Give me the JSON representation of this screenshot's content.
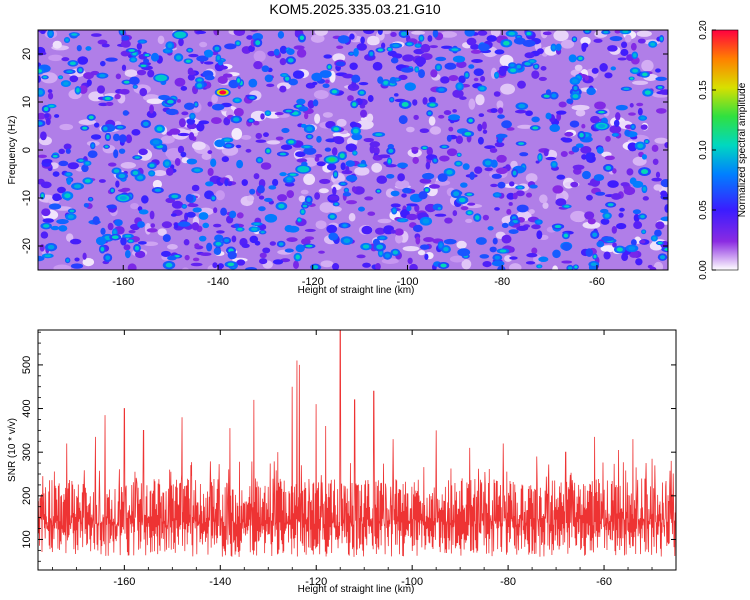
{
  "chart_data": [
    {
      "type": "heatmap",
      "title": "KOM5.2025.335.03.21.G10",
      "xlabel": "Height of straight line (km)",
      "ylabel": "Frequency (Hz)",
      "xlim": [
        -178,
        -45
      ],
      "ylim": [
        -25,
        25
      ],
      "x_ticks": [
        -160,
        -140,
        -120,
        -100,
        -80,
        -60
      ],
      "y_ticks": [
        -20,
        -10,
        0,
        10,
        20
      ],
      "colorbar": {
        "label": "Normalized spectral amplitude",
        "range": [
          0.0,
          0.2
        ],
        "ticks": [
          "0.00",
          "0.05",
          "0.10",
          "0.15",
          "0.20"
        ]
      },
      "highlights": [
        {
          "x": -139,
          "y": 12,
          "value": 0.2
        },
        {
          "x": -116,
          "y": -2,
          "value": 0.12
        },
        {
          "x": -122,
          "y": -4,
          "value": 0.1
        },
        {
          "x": -152,
          "y": 15,
          "value": 0.1
        },
        {
          "x": -148,
          "y": 24,
          "value": 0.1
        },
        {
          "x": -160,
          "y": -10,
          "value": 0.09
        },
        {
          "x": -59,
          "y": 5,
          "value": 0.09
        }
      ]
    },
    {
      "type": "line",
      "title": "",
      "xlabel": "Height of straight line (km)",
      "ylabel": "SNR (10 * v/v)",
      "xlim": [
        -178,
        -45
      ],
      "ylim": [
        30,
        580
      ],
      "x_ticks": [
        -160,
        -140,
        -120,
        -100,
        -80,
        -60
      ],
      "y_ticks": [
        100,
        200,
        300,
        400,
        500
      ],
      "series": [
        {
          "name": "SNR",
          "color": "#ee3333",
          "peaks": [
            {
              "x": -177,
              "y": 245
            },
            {
              "x": -172,
              "y": 320
            },
            {
              "x": -166,
              "y": 335
            },
            {
              "x": -164,
              "y": 385
            },
            {
              "x": -160,
              "y": 400
            },
            {
              "x": -156,
              "y": 350
            },
            {
              "x": -148,
              "y": 380
            },
            {
              "x": -138,
              "y": 355
            },
            {
              "x": -133,
              "y": 420
            },
            {
              "x": -128,
              "y": 300
            },
            {
              "x": -125,
              "y": 450
            },
            {
              "x": -124,
              "y": 510
            },
            {
              "x": -123.5,
              "y": 500
            },
            {
              "x": -120,
              "y": 410
            },
            {
              "x": -118,
              "y": 360
            },
            {
              "x": -115,
              "y": 580
            },
            {
              "x": -112,
              "y": 420
            },
            {
              "x": -108,
              "y": 440
            },
            {
              "x": -104,
              "y": 330
            },
            {
              "x": -95,
              "y": 350
            },
            {
              "x": -88,
              "y": 310
            },
            {
              "x": -81,
              "y": 320
            },
            {
              "x": -74,
              "y": 290
            },
            {
              "x": -68,
              "y": 300
            },
            {
              "x": -62,
              "y": 335
            },
            {
              "x": -57,
              "y": 305
            },
            {
              "x": -54,
              "y": 330
            },
            {
              "x": -50,
              "y": 285
            },
            {
              "x": -46,
              "y": 280
            }
          ]
        }
      ]
    }
  ]
}
